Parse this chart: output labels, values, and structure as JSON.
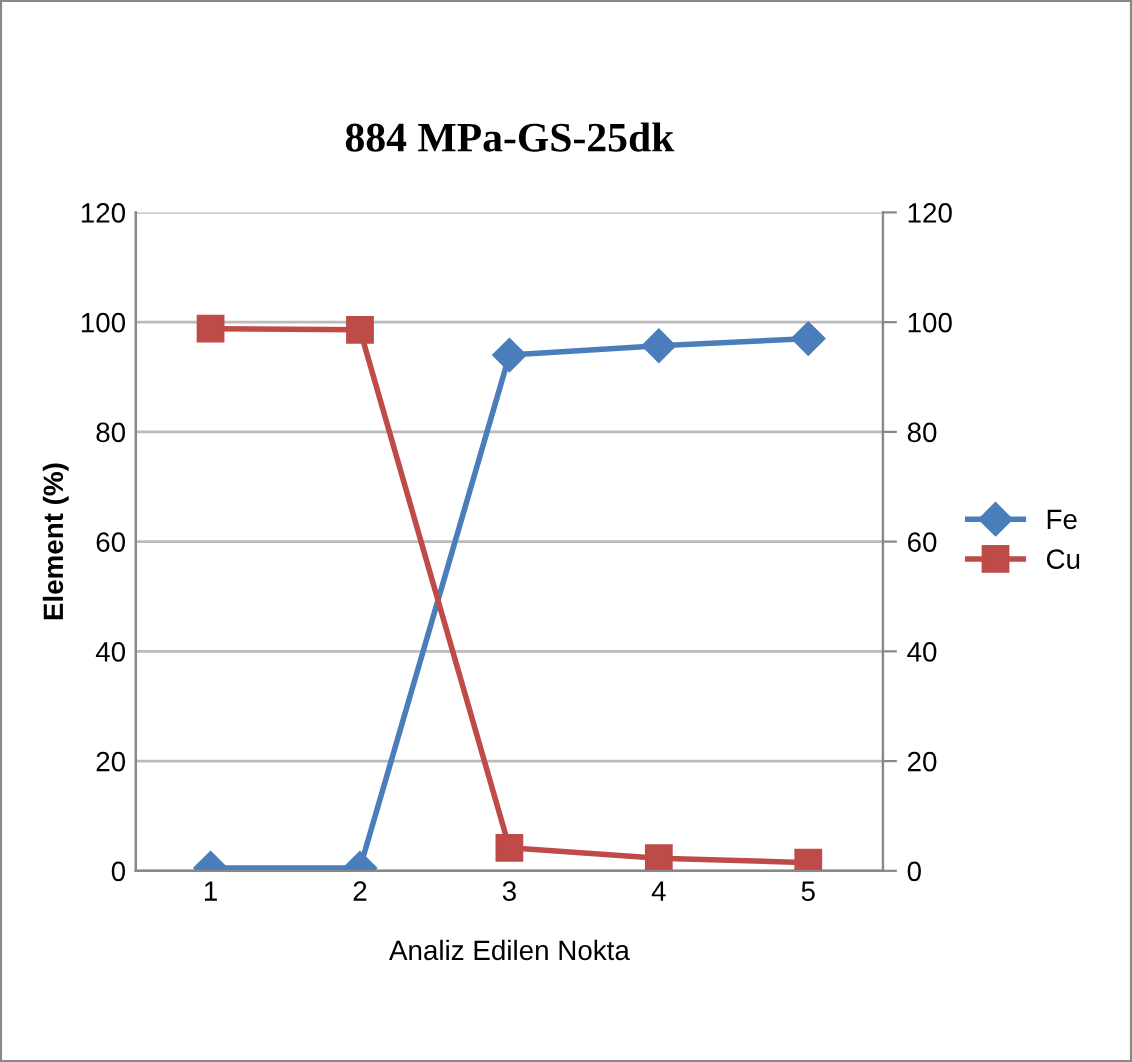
{
  "chart_data": {
    "type": "line",
    "title": "884 MPa-GS-25dk",
    "xlabel": "Analiz Edilen Nokta",
    "ylabel": "Element (%)",
    "categories": [
      "1",
      "2",
      "3",
      "4",
      "5"
    ],
    "series": [
      {
        "name": "Fe",
        "color": "#4a7ebb",
        "values": [
          0.5,
          0.5,
          94,
          95.7,
          97
        ],
        "marker": "diamond"
      },
      {
        "name": "Cu",
        "color": "#be4b48",
        "values": [
          98.8,
          98.6,
          4.2,
          2.3,
          1.5
        ],
        "marker": "square"
      }
    ],
    "ylim": [
      0,
      120
    ],
    "yticks": [
      0,
      20,
      40,
      60,
      80,
      100,
      120
    ],
    "y2lim": [
      0,
      120
    ],
    "y2ticks": [
      0,
      20,
      40,
      60,
      80,
      100,
      120
    ],
    "grid": "y",
    "legend": "right",
    "line_style": "solid"
  }
}
